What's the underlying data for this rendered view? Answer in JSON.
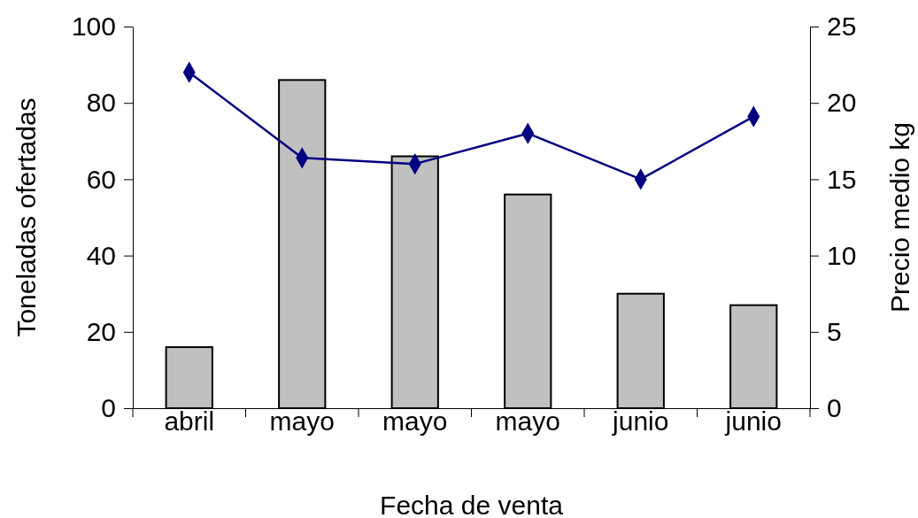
{
  "chart_data": {
    "type": "bar",
    "xlabel": "Fecha de venta",
    "ylabel": "Toneladas ofertadas",
    "y2label": "Precio medio kg",
    "categories": [
      "abril",
      "mayo",
      "mayo",
      "mayo",
      "junio",
      "junio"
    ],
    "series": [
      {
        "color": "#c0c0c0",
        "values": [
          16,
          86,
          66,
          56,
          30,
          27
        ]
      },
      {
        "type": "line",
        "axis": "y2",
        "color": "#000080",
        "marker": "diamond",
        "values": [
          22,
          16.4,
          16,
          18,
          15,
          19.1
        ]
      }
    ],
    "ylim": [
      0,
      100
    ],
    "yticks": [
      0,
      20,
      40,
      60,
      80,
      100
    ],
    "y2lim": [
      0,
      25
    ],
    "y2ticks": [
      0,
      5,
      10,
      15,
      20,
      25
    ],
    "grid": false
  }
}
